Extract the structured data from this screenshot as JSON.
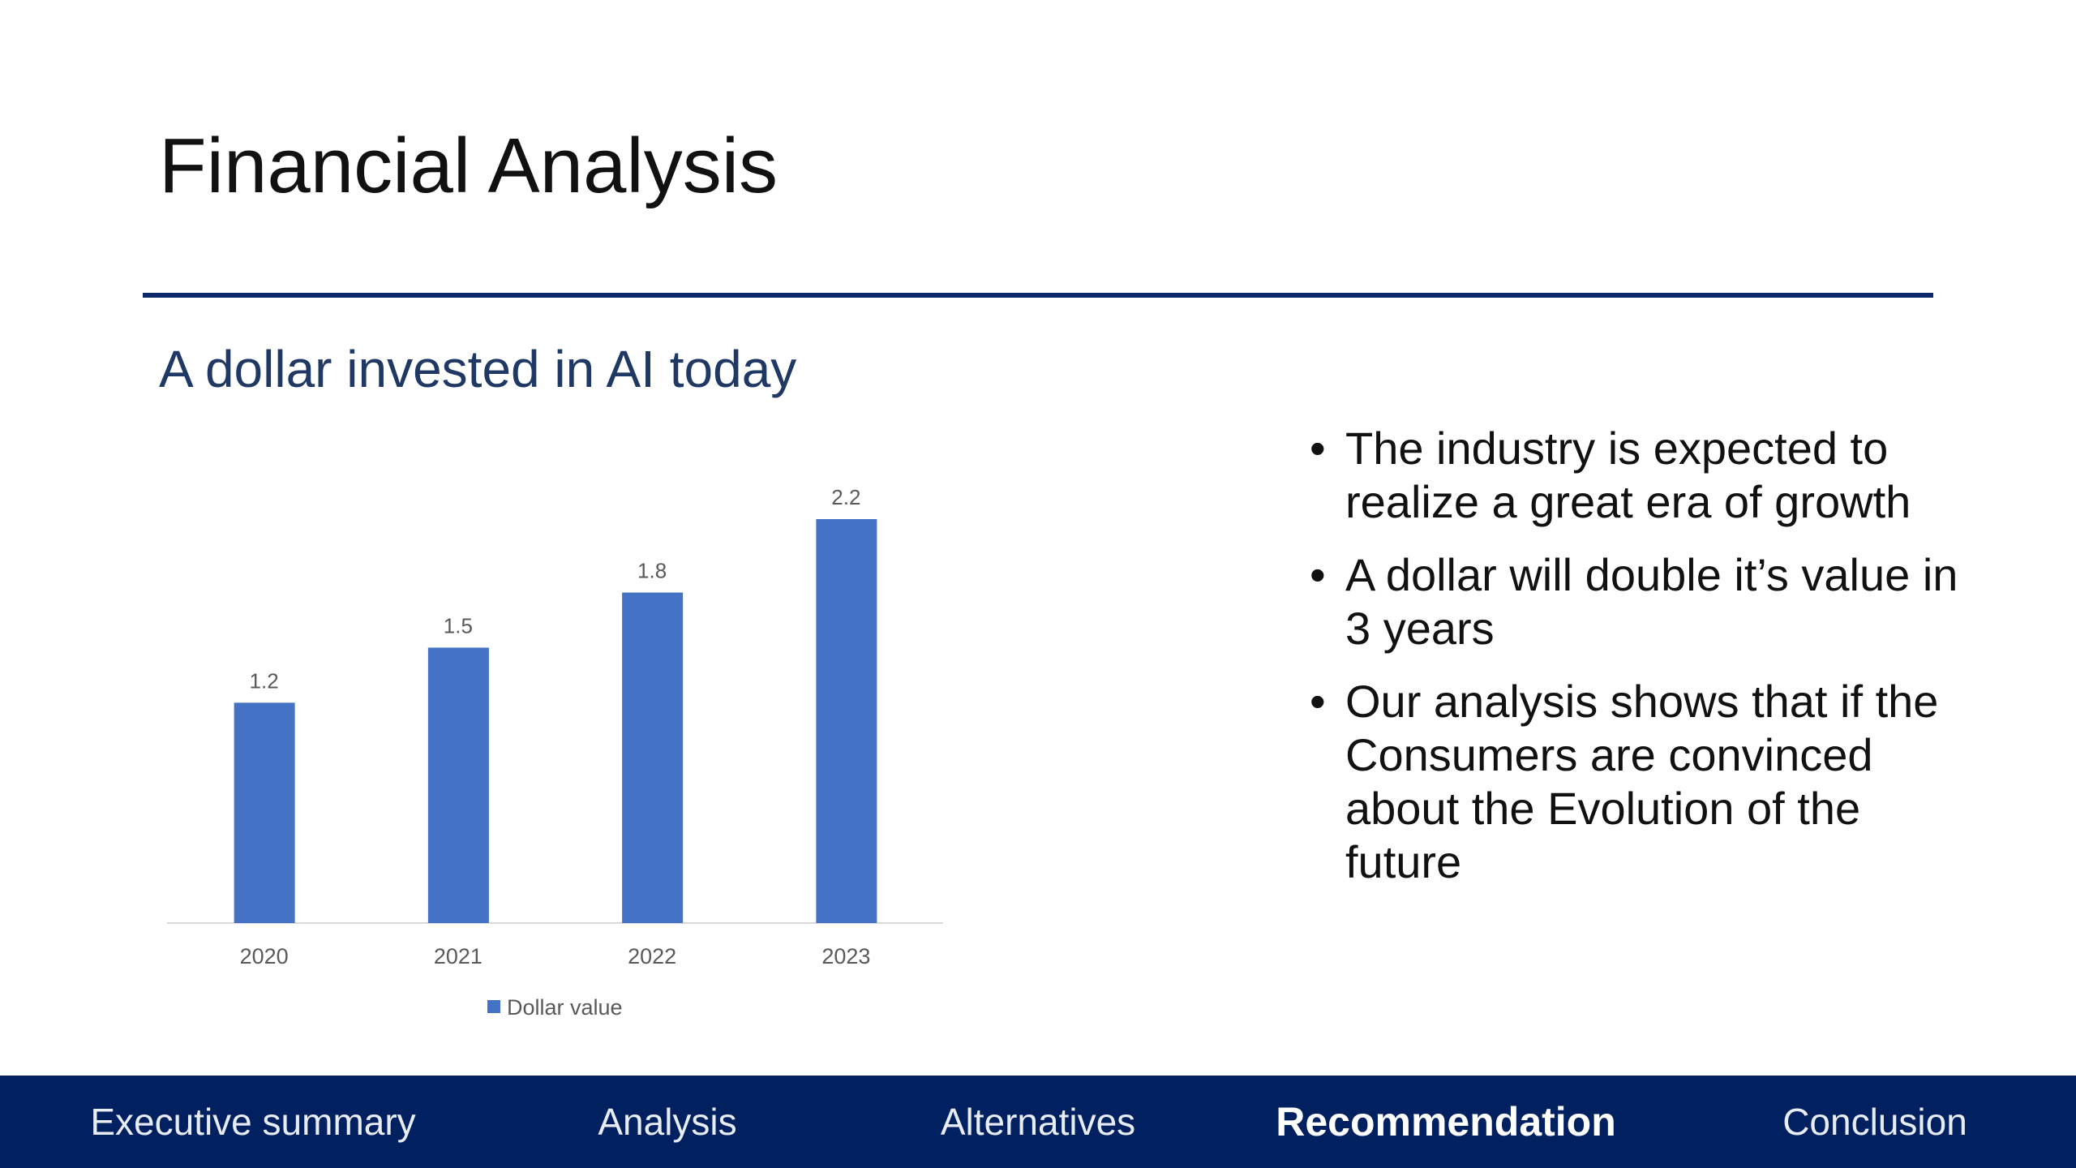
{
  "slide": {
    "title": "Financial Analysis",
    "subtitle": "A dollar invested in AI today"
  },
  "chart_data": {
    "type": "bar",
    "categories": [
      "2020",
      "2021",
      "2022",
      "2023"
    ],
    "series": [
      {
        "name": "Dollar value",
        "color": "#4472c4",
        "values": [
          1.2,
          1.5,
          1.8,
          2.2
        ]
      }
    ]
  },
  "bullets": [
    "The industry is expected to realize a great era of growth",
    "A dollar will double it’s value in 3 years",
    "Our analysis shows that if the Consumers are convinced about the Evolution of the future"
  ],
  "nav": {
    "items": [
      "Executive summary",
      "Analysis",
      "Alternatives",
      "Recommendation",
      "Conclusion"
    ],
    "current": 3
  }
}
